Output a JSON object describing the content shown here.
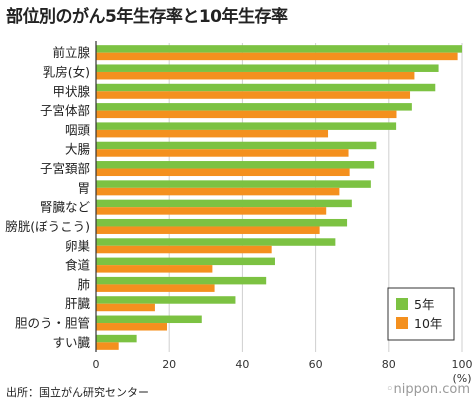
{
  "title": "部位別のがん5年生存率と10年生存率",
  "source": "出所：国立がん研究センター",
  "brand": "nippon.com",
  "colors": {
    "five_year": "#7cc242",
    "ten_year": "#f4901e",
    "grid": "#cfcfcf",
    "axis": "#333333"
  },
  "chart_data": {
    "type": "bar",
    "orientation": "horizontal",
    "title": "部位別のがん5年生存率と10年生存率",
    "categories": [
      "前立腺",
      "乳房(女)",
      "甲状腺",
      "子宮体部",
      "咽頭",
      "大腸",
      "子宮頚部",
      "胃",
      "腎臓など",
      "膀胱(ぼうこう)",
      "卵巣",
      "食道",
      "肺",
      "肝臓",
      "胆のう・胆管",
      "すい臓"
    ],
    "series": [
      {
        "name": "5年",
        "values": [
          100,
          93.6,
          92.7,
          86.3,
          82,
          76.6,
          76,
          75.1,
          69.9,
          68.6,
          65.4,
          48.9,
          46.5,
          38.1,
          28.9,
          11.1
        ]
      },
      {
        "name": "10年",
        "values": [
          98.8,
          87,
          85.8,
          82.1,
          63.4,
          69,
          69.3,
          66.5,
          62.9,
          61.1,
          48,
          31.8,
          32.4,
          16.1,
          19.4,
          6.2
        ]
      }
    ],
    "xlim": [
      0,
      100
    ],
    "xticks": [
      "0",
      "20",
      "40",
      "60",
      "80",
      "100"
    ],
    "unit": "(%)",
    "grid": true,
    "legend": "bottom-right"
  }
}
